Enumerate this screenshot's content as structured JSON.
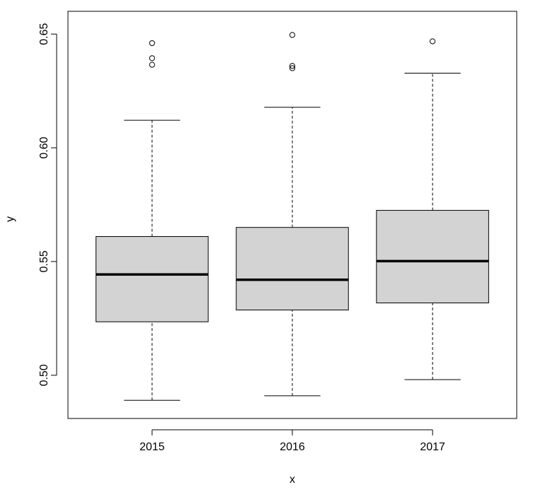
{
  "chart_data": {
    "type": "boxplot",
    "title": "",
    "xlabel": "x",
    "ylabel": "y",
    "ylim": [
      0.481,
      0.66
    ],
    "y_ticks": [
      "0.50",
      "0.55",
      "0.60",
      "0.65"
    ],
    "categories": [
      "2015",
      "2016",
      "2017"
    ],
    "grid": false,
    "legend": "none",
    "box_fill": "#d3d3d3",
    "boxes": [
      {
        "category": "2015",
        "whisker_low": 0.489,
        "q1": 0.5235,
        "median": 0.5443,
        "q3": 0.561,
        "whisker_high": 0.6121,
        "outliers": [
          0.6365,
          0.6394,
          0.646
        ]
      },
      {
        "category": "2016",
        "whisker_low": 0.491,
        "q1": 0.5287,
        "median": 0.542,
        "q3": 0.565,
        "whisker_high": 0.6178,
        "outliers": [
          0.635,
          0.636,
          0.6496
        ]
      },
      {
        "category": "2017",
        "whisker_low": 0.4981,
        "q1": 0.5318,
        "median": 0.5502,
        "q3": 0.5725,
        "whisker_high": 0.6328,
        "outliers": [
          0.6468
        ]
      }
    ]
  }
}
